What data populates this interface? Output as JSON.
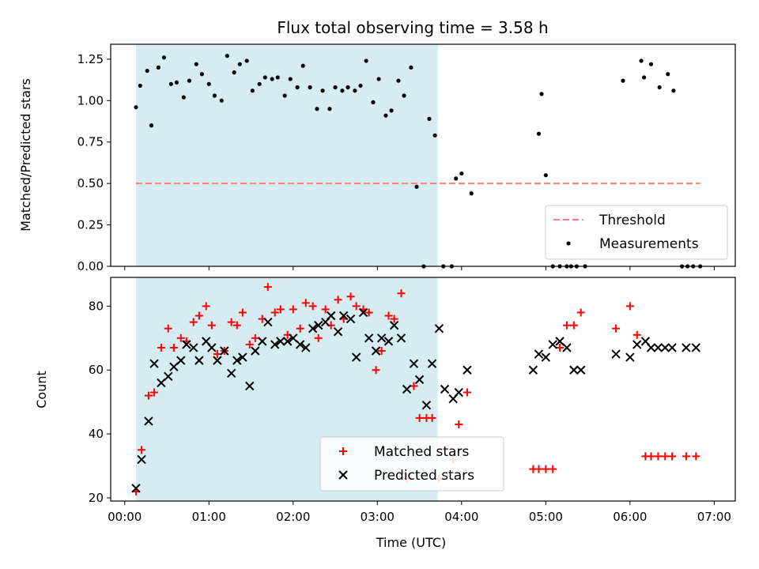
{
  "figure": {
    "title": "Flux total observing time = 3.58 h",
    "xlabel": "Time (UTC)",
    "colors": {
      "shade": "#add8e6",
      "threshold": "#ff7f7f",
      "measurement": "#000000",
      "matched": "#ff0000",
      "predicted": "#000000"
    }
  },
  "chart_data": [
    {
      "type": "scatter",
      "title": "Flux total observing time = 3.58 h",
      "xlabel": "",
      "ylabel": "Matched/Predicted stars",
      "xlim": [
        "-0:10",
        "7:15"
      ],
      "ylim": [
        0,
        1.34
      ],
      "x_ticks": [
        "00:00",
        "01:00",
        "02:00",
        "03:00",
        "04:00",
        "05:00",
        "06:00",
        "07:00"
      ],
      "y_ticks": [
        "0.00",
        "0.25",
        "0.50",
        "0.75",
        "1.00",
        "1.25"
      ],
      "shaded_span": [
        "00:08",
        "03:43"
      ],
      "legend": {
        "position": "lower-right",
        "entries": [
          "Threshold",
          "Measurements"
        ]
      },
      "threshold": {
        "name": "Threshold",
        "y": 0.5,
        "x_range": [
          "00:08",
          "06:50"
        ],
        "style": "dashed"
      },
      "series": [
        {
          "name": "Measurements",
          "x": [
            "00:08",
            "00:11",
            "00:16",
            "00:19",
            "00:24",
            "00:28",
            "00:33",
            "00:37",
            "00:42",
            "00:46",
            "00:51",
            "00:55",
            "01:00",
            "01:04",
            "01:09",
            "01:13",
            "01:18",
            "01:22",
            "01:27",
            "01:31",
            "01:36",
            "01:40",
            "01:45",
            "01:49",
            "01:54",
            "01:58",
            "02:03",
            "02:07",
            "02:12",
            "02:17",
            "02:21",
            "02:26",
            "02:30",
            "02:35",
            "02:39",
            "02:44",
            "02:48",
            "02:52",
            "02:57",
            "03:01",
            "03:06",
            "03:10",
            "03:15",
            "03:19",
            "03:24",
            "03:28",
            "03:33",
            "03:37",
            "03:41",
            "03:47",
            "03:53",
            "03:56",
            "04:00",
            "04:07",
            "04:55",
            "04:57",
            "05:00",
            "05:05",
            "05:10",
            "05:15",
            "05:18",
            "05:22",
            "05:28",
            "05:55",
            "06:08",
            "06:10",
            "06:15",
            "06:21",
            "06:27",
            "06:31",
            "06:37",
            "06:41",
            "06:45",
            "06:50"
          ],
          "y": [
            0.96,
            1.09,
            1.18,
            0.85,
            1.2,
            1.26,
            1.1,
            1.11,
            1.02,
            1.12,
            1.22,
            1.16,
            1.1,
            1.03,
            1.0,
            1.27,
            1.17,
            1.22,
            1.24,
            1.06,
            1.1,
            1.14,
            1.13,
            1.14,
            1.03,
            1.13,
            1.08,
            1.21,
            1.08,
            0.95,
            1.06,
            0.95,
            1.08,
            1.06,
            1.08,
            1.06,
            1.09,
            1.24,
            0.99,
            1.13,
            0.91,
            0.94,
            1.12,
            1.03,
            1.2,
            0.48,
            0.0,
            0.89,
            0.79,
            0.0,
            0.0,
            0.53,
            0.56,
            0.44,
            0.8,
            1.04,
            0.55,
            0.0,
            0.0,
            0.0,
            0.0,
            0.0,
            0.0,
            1.12,
            1.24,
            1.14,
            1.22,
            1.08,
            1.16,
            1.06,
            0.0,
            0.0,
            0.0,
            0.0
          ]
        }
      ]
    },
    {
      "type": "scatter",
      "title": "",
      "xlabel": "Time (UTC)",
      "ylabel": "Count",
      "xlim": [
        "-0:10",
        "7:15"
      ],
      "ylim": [
        19,
        89
      ],
      "x_ticks": [
        "00:00",
        "01:00",
        "02:00",
        "03:00",
        "04:00",
        "05:00",
        "06:00",
        "07:00"
      ],
      "y_ticks": [
        "20",
        "40",
        "60",
        "80"
      ],
      "shaded_span": [
        "00:08",
        "03:43"
      ],
      "legend": {
        "position": "lower-center",
        "entries": [
          "Matched stars",
          "Predicted stars"
        ]
      },
      "series": [
        {
          "name": "Matched stars",
          "marker": "+",
          "x": [
            "00:08",
            "00:12",
            "00:17",
            "00:21",
            "00:26",
            "00:31",
            "00:35",
            "00:40",
            "00:44",
            "00:49",
            "00:53",
            "00:58",
            "01:02",
            "01:06",
            "01:11",
            "01:16",
            "01:20",
            "01:24",
            "01:29",
            "01:33",
            "01:38",
            "01:42",
            "01:47",
            "01:51",
            "01:56",
            "02:00",
            "02:05",
            "02:09",
            "02:14",
            "02:18",
            "02:23",
            "02:27",
            "02:32",
            "02:36",
            "02:41",
            "02:45",
            "02:50",
            "02:54",
            "02:59",
            "03:03",
            "03:08",
            "03:12",
            "03:17",
            "03:21",
            "03:26",
            "03:30",
            "03:35",
            "03:39",
            "03:44",
            "03:48",
            "03:54",
            "03:58",
            "04:04",
            "04:51",
            "04:55",
            "05:00",
            "05:05",
            "05:10",
            "05:15",
            "05:20",
            "05:25",
            "05:50",
            "06:00",
            "06:05",
            "06:11",
            "06:15",
            "06:20",
            "06:25",
            "06:30",
            "06:40",
            "06:47"
          ],
          "y": [
            22,
            35,
            52,
            53,
            67,
            73,
            67,
            70,
            69,
            75,
            77,
            80,
            74,
            65,
            66,
            75,
            74,
            78,
            68,
            70,
            76,
            86,
            78,
            79,
            71,
            79,
            73,
            81,
            80,
            70,
            79,
            74,
            82,
            76,
            83,
            80,
            79,
            78,
            60,
            66,
            77,
            76,
            84,
            26,
            55,
            45,
            45,
            45,
            26,
            35,
            32,
            43,
            53,
            29,
            29,
            29,
            29,
            67,
            74,
            74,
            78,
            73,
            80,
            71,
            33,
            33,
            33,
            33,
            33,
            33,
            33
          ],
          "y_alt_note": ""
        },
        {
          "name": "Predicted stars",
          "marker": "x",
          "x": [
            "00:08",
            "00:12",
            "00:17",
            "00:21",
            "00:26",
            "00:31",
            "00:35",
            "00:40",
            "00:44",
            "00:49",
            "00:53",
            "00:58",
            "01:02",
            "01:06",
            "01:11",
            "01:16",
            "01:20",
            "01:24",
            "01:29",
            "01:33",
            "01:38",
            "01:42",
            "01:47",
            "01:51",
            "01:56",
            "02:00",
            "02:05",
            "02:09",
            "02:14",
            "02:18",
            "02:23",
            "02:27",
            "02:32",
            "02:36",
            "02:41",
            "02:45",
            "02:50",
            "02:54",
            "02:59",
            "03:03",
            "03:08",
            "03:12",
            "03:17",
            "03:21",
            "03:26",
            "03:30",
            "03:35",
            "03:39",
            "03:44",
            "03:48",
            "03:54",
            "03:58",
            "04:04",
            "04:51",
            "04:55",
            "05:00",
            "05:05",
            "05:10",
            "05:15",
            "05:20",
            "05:25",
            "05:50",
            "06:00",
            "06:05",
            "06:11",
            "06:15",
            "06:20",
            "06:25",
            "06:30",
            "06:40",
            "06:47"
          ],
          "y": [
            23,
            32,
            44,
            62,
            56,
            58,
            61,
            63,
            68,
            67,
            63,
            69,
            67,
            63,
            66,
            59,
            63,
            64,
            55,
            66,
            69,
            75,
            68,
            69,
            69,
            70,
            68,
            67,
            73,
            74,
            75,
            77,
            72,
            77,
            76,
            64,
            78,
            70,
            66,
            70,
            69,
            74,
            70,
            54,
            62,
            57,
            49,
            62,
            73,
            54,
            51,
            53,
            60,
            60,
            65,
            64,
            68,
            69,
            67,
            60,
            60,
            65,
            64,
            68,
            69,
            67,
            67,
            67,
            67,
            67,
            67
          ]
        }
      ]
    }
  ]
}
